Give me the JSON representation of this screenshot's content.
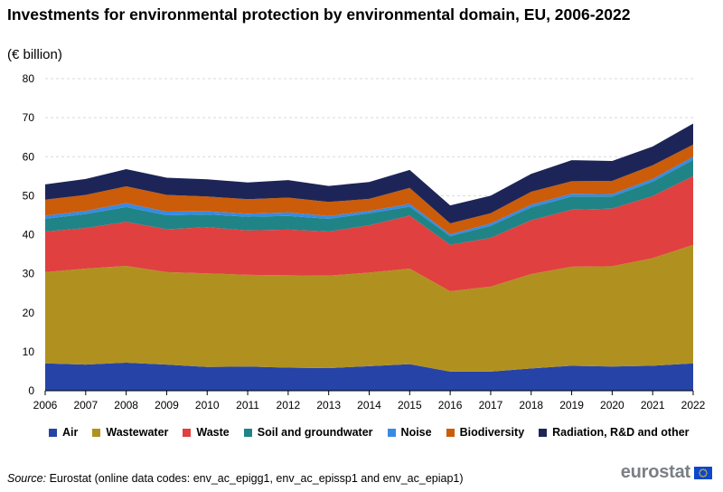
{
  "title": "Investments for environmental protection by environmental domain, EU, 2006-2022",
  "subtitle": "(€ billion)",
  "source_label": "Source:",
  "source_text": " Eurostat (online data codes: env_ac_epigg1, env_ac_epissp1 and env_ac_epiap1)",
  "logo_text": "eurostat",
  "logo_icon": "eu-flag-icon",
  "chart_data": {
    "type": "area",
    "stacked": true,
    "title": "Investments for environmental protection by environmental domain, EU, 2006-2022",
    "ylabel": "€ billion",
    "ylim": [
      0,
      80
    ],
    "yticks": [
      0,
      10,
      20,
      30,
      40,
      50,
      60,
      70,
      80
    ],
    "grid": true,
    "legend_position": "bottom",
    "x": [
      "2006",
      "2007",
      "2008",
      "2009",
      "2010",
      "2011",
      "2012",
      "2013",
      "2014",
      "2015",
      "2016",
      "2017",
      "2018",
      "2019",
      "2020",
      "2021",
      "2022"
    ],
    "series": [
      {
        "name": "Air",
        "color": "#2644a7",
        "values": [
          7.0,
          6.7,
          7.2,
          6.7,
          6.1,
          6.2,
          5.9,
          5.8,
          6.3,
          6.8,
          4.9,
          4.9,
          5.7,
          6.4,
          6.2,
          6.4,
          7.0
        ]
      },
      {
        "name": "Wastewater",
        "color": "#b09120",
        "values": [
          23.4,
          24.6,
          24.8,
          23.7,
          24.0,
          23.5,
          23.7,
          23.7,
          24.0,
          24.5,
          20.6,
          21.8,
          24.2,
          25.4,
          25.7,
          27.6,
          30.4
        ]
      },
      {
        "name": "Waste",
        "color": "#e04040",
        "values": [
          10.4,
          10.4,
          11.3,
          11.0,
          11.8,
          11.4,
          11.7,
          11.3,
          12.1,
          13.6,
          11.9,
          12.5,
          13.8,
          14.6,
          14.8,
          15.9,
          17.6
        ]
      },
      {
        "name": "Soil and groundwater",
        "color": "#208486",
        "values": [
          3.3,
          3.6,
          3.8,
          3.6,
          3.3,
          3.5,
          3.5,
          3.3,
          3.1,
          2.3,
          2.2,
          3.1,
          3.3,
          3.4,
          3.1,
          3.7,
          4.2
        ]
      },
      {
        "name": "Noise",
        "color": "#388ae2",
        "values": [
          0.8,
          0.8,
          1.0,
          0.9,
          0.8,
          0.8,
          0.9,
          0.7,
          0.6,
          0.7,
          0.5,
          0.6,
          0.7,
          0.7,
          0.6,
          0.7,
          0.8
        ]
      },
      {
        "name": "Biodiversity",
        "color": "#cb5c09",
        "values": [
          4.1,
          4.1,
          4.3,
          4.3,
          3.8,
          3.7,
          3.8,
          3.6,
          3.1,
          4.1,
          2.8,
          2.6,
          3.3,
          3.2,
          3.4,
          3.5,
          3.1
        ]
      },
      {
        "name": "Radiation, R&D and other",
        "color": "#1d2558",
        "values": [
          3.9,
          4.1,
          4.4,
          4.4,
          4.4,
          4.3,
          4.5,
          4.1,
          4.3,
          4.6,
          4.6,
          4.5,
          4.6,
          5.4,
          5.1,
          4.8,
          5.4
        ]
      }
    ]
  }
}
